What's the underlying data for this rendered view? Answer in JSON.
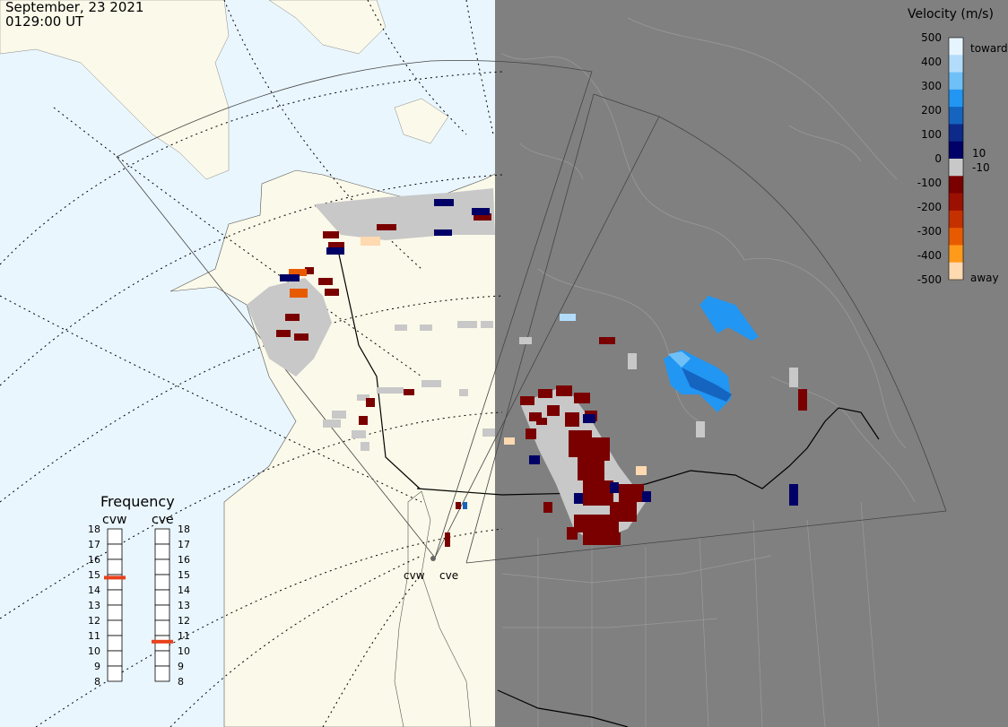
{
  "header": {
    "date": "September, 23 2021",
    "time": "0129:00 UT"
  },
  "velocity_scale": {
    "title": "Velocity (m/s)",
    "ticks": [
      "500",
      "400",
      "300",
      "200",
      "100",
      "0",
      "-100",
      "-200",
      "-300",
      "-400",
      "-500"
    ],
    "low_labels": [
      "10",
      "-10"
    ],
    "toward_label": "toward",
    "away_label": "away",
    "colors": [
      "#e6f4ff",
      "#b3dcfb",
      "#6fc0f7",
      "#2196f3",
      "#1565c0",
      "#0d2a8a",
      "#000066",
      "#c8c8c8",
      "#7a0000",
      "#9b1000",
      "#c43000",
      "#e85a00",
      "#ff9a1a",
      "#ffd9b0"
    ]
  },
  "frequency": {
    "title": "Frequency",
    "radars": [
      {
        "name": "cvw",
        "value": 14.8
      },
      {
        "name": "cve",
        "value": 10.6
      }
    ],
    "range": [
      8,
      18
    ],
    "ticks": [
      "18",
      "17",
      "16",
      "15",
      "14",
      "13",
      "12",
      "11",
      "10",
      "9",
      "8"
    ],
    "marker_color": "#e8401c"
  },
  "radar_sites": [
    {
      "name": "cvw"
    },
    {
      "name": "cve"
    }
  ],
  "colors": {
    "ocean": "#e9f6fe",
    "land": "#fbf9e9",
    "night": "#808080",
    "ground_scatter": "#c8c8c8"
  }
}
